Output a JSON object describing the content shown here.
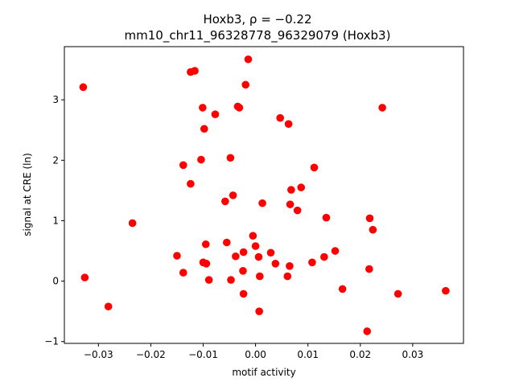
{
  "chart_data": {
    "type": "scatter",
    "title_line1": "Hoxb3, ρ = −0.22",
    "title_line2": "mm10_chr11_96328778_96329079 (Hoxb3)",
    "xlabel": "motif activity",
    "ylabel": "signal at CRE (ln)",
    "xlim": [
      -0.0365,
      0.0397
    ],
    "ylim": [
      -1.03,
      3.88
    ],
    "x_ticks": [
      -0.03,
      -0.02,
      -0.01,
      0.0,
      0.01,
      0.02,
      0.03
    ],
    "x_tick_labels": [
      "−0.03",
      "−0.02",
      "−0.01",
      "0.00",
      "0.01",
      "0.02",
      "0.03"
    ],
    "y_ticks": [
      -1,
      0,
      1,
      2,
      3
    ],
    "y_tick_labels": [
      "−1",
      "0",
      "1",
      "2",
      "3"
    ],
    "grid": false,
    "marker_color": "#ff0000",
    "points": [
      {
        "x": -0.0329,
        "y": 3.21
      },
      {
        "x": -0.0326,
        "y": 0.06
      },
      {
        "x": -0.0281,
        "y": -0.42
      },
      {
        "x": -0.0235,
        "y": 0.96
      },
      {
        "x": -0.015,
        "y": 0.42
      },
      {
        "x": -0.0138,
        "y": 1.92
      },
      {
        "x": -0.0138,
        "y": 0.14
      },
      {
        "x": -0.0124,
        "y": 3.46
      },
      {
        "x": -0.0124,
        "y": 1.61
      },
      {
        "x": -0.0116,
        "y": 3.48
      },
      {
        "x": -0.0104,
        "y": 2.01
      },
      {
        "x": -0.0101,
        "y": 2.87
      },
      {
        "x": -0.01,
        "y": 0.31
      },
      {
        "x": -0.0098,
        "y": 2.52
      },
      {
        "x": -0.0095,
        "y": 0.61
      },
      {
        "x": -0.0094,
        "y": 0.29
      },
      {
        "x": -0.0089,
        "y": 0.02
      },
      {
        "x": -0.0077,
        "y": 2.76
      },
      {
        "x": -0.0058,
        "y": 1.32
      },
      {
        "x": -0.0055,
        "y": 0.64
      },
      {
        "x": -0.0048,
        "y": 2.04
      },
      {
        "x": -0.0047,
        "y": 0.02
      },
      {
        "x": -0.0043,
        "y": 1.42
      },
      {
        "x": -0.0038,
        "y": 0.41
      },
      {
        "x": -0.0034,
        "y": 2.89
      },
      {
        "x": -0.0031,
        "y": 2.87
      },
      {
        "x": -0.0024,
        "y": 0.17
      },
      {
        "x": -0.0023,
        "y": 0.48
      },
      {
        "x": -0.0023,
        "y": -0.21
      },
      {
        "x": -0.0019,
        "y": 3.25
      },
      {
        "x": -0.0014,
        "y": 3.67
      },
      {
        "x": -0.0005,
        "y": 0.75
      },
      {
        "x": 0.0,
        "y": 0.58
      },
      {
        "x": 0.0006,
        "y": 0.4
      },
      {
        "x": 0.0007,
        "y": -0.5
      },
      {
        "x": 0.0008,
        "y": 0.08
      },
      {
        "x": 0.0013,
        "y": 1.29
      },
      {
        "x": 0.0029,
        "y": 0.47
      },
      {
        "x": 0.0038,
        "y": 0.29
      },
      {
        "x": 0.0047,
        "y": 2.7
      },
      {
        "x": 0.0061,
        "y": 0.08
      },
      {
        "x": 0.0063,
        "y": 2.6
      },
      {
        "x": 0.0065,
        "y": 0.25
      },
      {
        "x": 0.0066,
        "y": 1.27
      },
      {
        "x": 0.0068,
        "y": 1.51
      },
      {
        "x": 0.008,
        "y": 1.17
      },
      {
        "x": 0.0087,
        "y": 1.55
      },
      {
        "x": 0.0108,
        "y": 0.31
      },
      {
        "x": 0.0112,
        "y": 1.88
      },
      {
        "x": 0.0131,
        "y": 0.4
      },
      {
        "x": 0.0135,
        "y": 1.05
      },
      {
        "x": 0.0152,
        "y": 0.5
      },
      {
        "x": 0.0166,
        "y": -0.13
      },
      {
        "x": 0.0213,
        "y": -0.83
      },
      {
        "x": 0.0217,
        "y": 0.2
      },
      {
        "x": 0.0218,
        "y": 1.04
      },
      {
        "x": 0.0224,
        "y": 0.85
      },
      {
        "x": 0.0242,
        "y": 2.87
      },
      {
        "x": 0.0272,
        "y": -0.21
      },
      {
        "x": 0.0363,
        "y": -0.16
      }
    ]
  }
}
